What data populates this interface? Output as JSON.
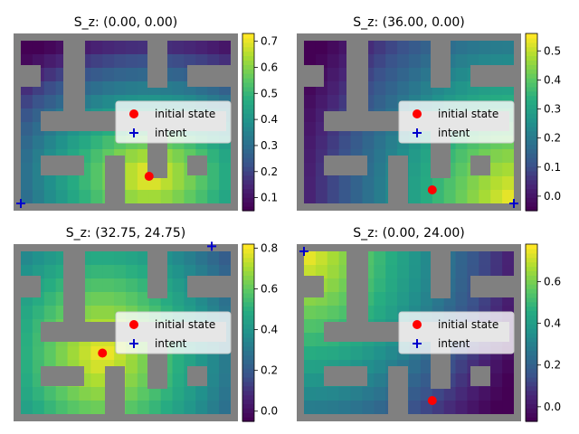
{
  "chart_data": [
    {
      "type": "heatmap",
      "title": "S_z: (0.00, 0.00)",
      "colormap": "viridis",
      "colorbar": {
        "range": [
          0.05,
          0.73
        ],
        "ticks": [
          "0.1",
          "0.2",
          "0.3",
          "0.4",
          "0.5",
          "0.6",
          "0.7"
        ]
      },
      "initial_state": [
        22,
        4
      ],
      "intent": [
        0,
        0
      ],
      "legend": {
        "placement": "center-right",
        "entries": [
          "initial state",
          "intent"
        ]
      },
      "field": {
        "gradient": "from_initial",
        "low_near": "top-left",
        "high_near": "bottom-right"
      }
    },
    {
      "type": "heatmap",
      "title": "S_z: (36.00, 0.00)",
      "colormap": "viridis",
      "colorbar": {
        "range": [
          -0.05,
          0.56
        ],
        "ticks": [
          "0.0",
          "0.1",
          "0.2",
          "0.3",
          "0.4",
          "0.5"
        ]
      },
      "initial_state": [
        22,
        2
      ],
      "intent": [
        36,
        0
      ],
      "legend": {
        "placement": "center-right",
        "entries": [
          "initial state",
          "intent"
        ]
      },
      "field": {
        "gradient": "toward_intent",
        "low_near": "top-left",
        "high_near": "bottom-right"
      }
    },
    {
      "type": "heatmap",
      "title": "S_z: (32.75, 24.75)",
      "colormap": "viridis",
      "colorbar": {
        "range": [
          -0.05,
          0.82
        ],
        "ticks": [
          "0.0",
          "0.2",
          "0.4",
          "0.6",
          "0.8"
        ]
      },
      "initial_state": [
        14,
        9
      ],
      "intent": [
        32.75,
        24.75
      ],
      "legend": {
        "placement": "center-right",
        "entries": [
          "initial state",
          "intent"
        ]
      },
      "field": {
        "gradient": "around_initial",
        "low_near": "top-right",
        "high_near": "center-left"
      }
    },
    {
      "type": "heatmap",
      "title": "S_z: (0.00, 24.00)",
      "colormap": "viridis",
      "colorbar": {
        "range": [
          -0.07,
          0.78
        ],
        "ticks": [
          "0.0",
          "0.2",
          "0.4",
          "0.6"
        ]
      },
      "initial_state": [
        22,
        2
      ],
      "intent": [
        0,
        24
      ],
      "legend": {
        "placement": "center-right",
        "entries": [
          "initial state",
          "intent"
        ]
      },
      "field": {
        "gradient": "toward_intent",
        "low_near": "top-right",
        "high_near": "left"
      }
    }
  ]
}
